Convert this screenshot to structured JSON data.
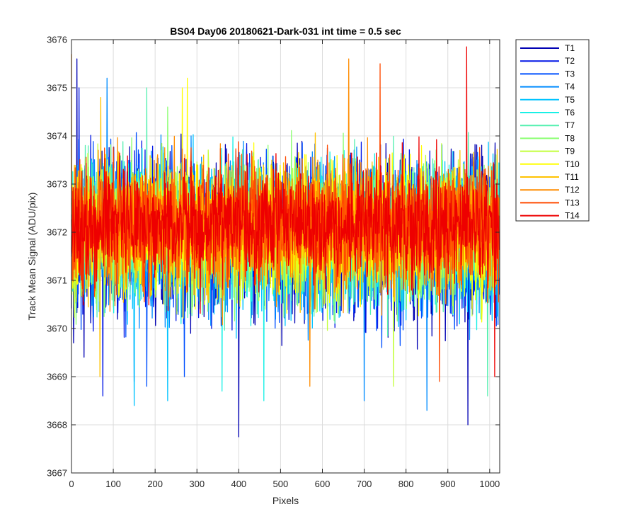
{
  "chart_data": {
    "type": "line",
    "title": "BS04 Day06 20180621-Dark-031 int time = 0.5 sec",
    "xlabel": "Pixels",
    "ylabel": "Track Mean Signal (ADU/pix)",
    "xlim": [
      0,
      1024
    ],
    "ylim": [
      3667,
      3676
    ],
    "xticks": [
      0,
      100,
      200,
      300,
      400,
      500,
      600,
      700,
      800,
      900,
      1000
    ],
    "yticks": [
      3667,
      3668,
      3669,
      3670,
      3671,
      3672,
      3673,
      3674,
      3675,
      3676
    ],
    "xtick_labels": [
      "0",
      "100",
      "200",
      "300",
      "400",
      "500",
      "600",
      "700",
      "800",
      "900",
      "1000"
    ],
    "ytick_labels": [
      "3667",
      "3668",
      "3669",
      "3670",
      "3671",
      "3672",
      "3673",
      "3674",
      "3675",
      "3676"
    ],
    "grid": true,
    "legend_position": "outside-top-right",
    "series_summary": {
      "points_per_series": 1024,
      "mean_signal": 3672.0,
      "approx_min": 3667.7,
      "approx_max": 3675.9
    },
    "series": [
      {
        "name": "T1",
        "color": "#0000b3",
        "mean": 3671.9,
        "spread": 1.15,
        "seed": 11,
        "extremes": [
          [
            13,
            3675.6
          ],
          [
            400,
            3667.75
          ],
          [
            948,
            3668.0
          ],
          [
            5,
            3669.7
          ]
        ]
      },
      {
        "name": "T2",
        "color": "#0015e6",
        "mean": 3671.9,
        "spread": 1.1,
        "seed": 23,
        "extremes": [
          [
            18,
            3675.0
          ],
          [
            75,
            3668.6
          ],
          [
            150,
            3668.9
          ]
        ]
      },
      {
        "name": "T3",
        "color": "#0050ff",
        "mean": 3671.95,
        "spread": 1.1,
        "seed": 37,
        "extremes": [
          [
            270,
            3669.0
          ],
          [
            180,
            3668.8
          ]
        ]
      },
      {
        "name": "T4",
        "color": "#008cff",
        "mean": 3671.95,
        "spread": 1.05,
        "seed": 41,
        "extremes": [
          [
            85,
            3675.2
          ],
          [
            850,
            3668.3
          ],
          [
            700,
            3668.5
          ]
        ]
      },
      {
        "name": "T5",
        "color": "#00c3ff",
        "mean": 3672.0,
        "spread": 1.05,
        "seed": 53,
        "extremes": [
          [
            150,
            3668.4
          ],
          [
            230,
            3668.5
          ]
        ]
      },
      {
        "name": "T6",
        "color": "#19f0e6",
        "mean": 3672.0,
        "spread": 1.0,
        "seed": 61,
        "extremes": [
          [
            360,
            3668.7
          ],
          [
            460,
            3668.5
          ]
        ]
      },
      {
        "name": "T7",
        "color": "#55f0b0",
        "mean": 3672.0,
        "spread": 1.0,
        "seed": 71,
        "extremes": [
          [
            180,
            3675.0
          ],
          [
            995,
            3668.6
          ]
        ]
      },
      {
        "name": "T8",
        "color": "#8cff73",
        "mean": 3672.05,
        "spread": 0.98,
        "seed": 83,
        "extremes": [
          [
            230,
            3674.6
          ]
        ]
      },
      {
        "name": "T9",
        "color": "#c3ff3c",
        "mean": 3672.05,
        "spread": 0.95,
        "seed": 97,
        "extremes": [
          [
            770,
            3668.8
          ]
        ]
      },
      {
        "name": "T10",
        "color": "#ffff00",
        "mean": 3672.05,
        "spread": 0.95,
        "seed": 101,
        "extremes": [
          [
            277,
            3675.2
          ],
          [
            265,
            3675.0
          ]
        ]
      },
      {
        "name": "T11",
        "color": "#ffc300",
        "mean": 3672.1,
        "spread": 0.92,
        "seed": 113,
        "extremes": [
          [
            70,
            3674.8
          ],
          [
            68,
            3669.0
          ]
        ]
      },
      {
        "name": "T12",
        "color": "#ff8c00",
        "mean": 3672.1,
        "spread": 0.9,
        "seed": 127,
        "extremes": [
          [
            663,
            3675.6
          ],
          [
            0,
            3675.7
          ],
          [
            570,
            3668.8
          ]
        ]
      },
      {
        "name": "T13",
        "color": "#ff4a00",
        "mean": 3672.15,
        "spread": 0.88,
        "seed": 131,
        "extremes": [
          [
            738,
            3675.5
          ],
          [
            880,
            3668.9
          ]
        ]
      },
      {
        "name": "T14",
        "color": "#ee0000",
        "mean": 3672.15,
        "spread": 0.85,
        "seed": 149,
        "extremes": [
          [
            945,
            3675.85
          ],
          [
            1012,
            3669.0
          ]
        ]
      }
    ]
  }
}
